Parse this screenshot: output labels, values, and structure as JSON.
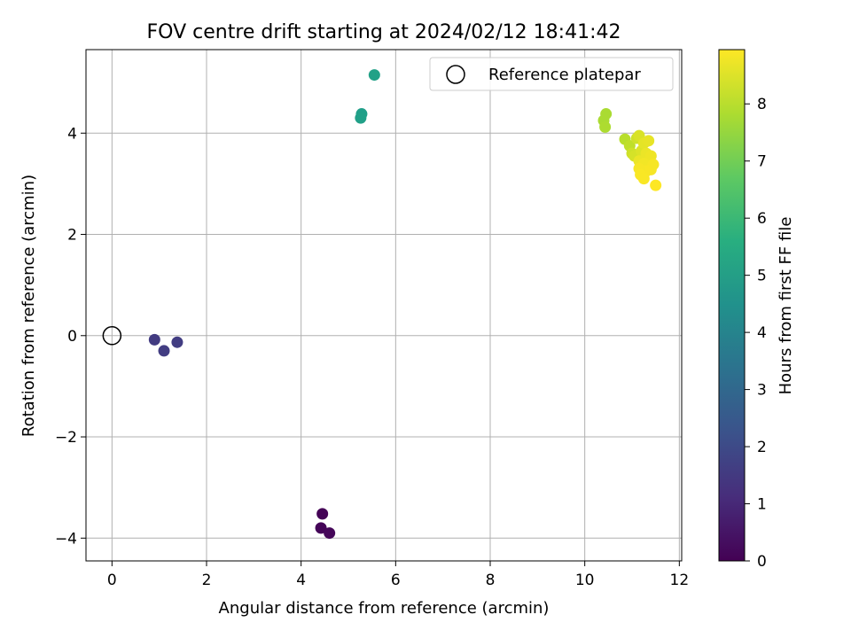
{
  "chart_data": {
    "type": "scatter",
    "title": "FOV centre drift starting at 2024/02/12 18:41:42",
    "xlabel": "Angular distance from reference (arcmin)",
    "ylabel": "Rotation from reference (arcmin)",
    "xlim": [
      -0.55,
      12.05
    ],
    "ylim": [
      -4.45,
      5.65
    ],
    "xticks": [
      0,
      2,
      4,
      6,
      8,
      10,
      12
    ],
    "yticks": [
      -4,
      -2,
      0,
      2,
      4
    ],
    "xtick_labels": [
      "0",
      "2",
      "4",
      "6",
      "8",
      "10",
      "12"
    ],
    "ytick_labels": [
      "−4",
      "−2",
      "0",
      "2",
      "4"
    ],
    "grid": true,
    "legend": {
      "position": "top-right",
      "label": "Reference platepar"
    },
    "reference_point": {
      "x": 0,
      "y": 0
    },
    "colorbar": {
      "label": "Hours from first FF file",
      "colormap": "viridis",
      "range": [
        0,
        8.95
      ],
      "ticks": [
        0,
        1,
        2,
        3,
        4,
        5,
        6,
        7,
        8
      ],
      "tick_labels": [
        "0",
        "1",
        "2",
        "3",
        "4",
        "5",
        "6",
        "7",
        "8"
      ]
    },
    "points": [
      {
        "x": 4.45,
        "y": -3.52,
        "c": 0.05
      },
      {
        "x": 4.42,
        "y": -3.8,
        "c": 0.1
      },
      {
        "x": 4.6,
        "y": -3.9,
        "c": 0.15
      },
      {
        "x": 0.9,
        "y": -0.08,
        "c": 1.55
      },
      {
        "x": 1.1,
        "y": -0.3,
        "c": 1.6
      },
      {
        "x": 1.38,
        "y": -0.13,
        "c": 1.6
      },
      {
        "x": 5.55,
        "y": 5.15,
        "c": 5.1
      },
      {
        "x": 5.28,
        "y": 4.38,
        "c": 5.0
      },
      {
        "x": 5.26,
        "y": 4.3,
        "c": 5.05
      },
      {
        "x": 10.45,
        "y": 4.38,
        "c": 7.8
      },
      {
        "x": 10.4,
        "y": 4.25,
        "c": 7.8
      },
      {
        "x": 10.43,
        "y": 4.12,
        "c": 7.85
      },
      {
        "x": 10.85,
        "y": 3.88,
        "c": 8.0
      },
      {
        "x": 10.95,
        "y": 3.75,
        "c": 8.1
      },
      {
        "x": 11.1,
        "y": 3.9,
        "c": 8.3
      },
      {
        "x": 11.15,
        "y": 3.95,
        "c": 8.45
      },
      {
        "x": 11.0,
        "y": 3.6,
        "c": 8.3
      },
      {
        "x": 11.05,
        "y": 3.55,
        "c": 8.4
      },
      {
        "x": 11.2,
        "y": 3.65,
        "c": 8.5
      },
      {
        "x": 11.25,
        "y": 3.8,
        "c": 8.6
      },
      {
        "x": 11.35,
        "y": 3.85,
        "c": 8.65
      },
      {
        "x": 11.3,
        "y": 3.6,
        "c": 8.7
      },
      {
        "x": 11.4,
        "y": 3.55,
        "c": 8.75
      },
      {
        "x": 11.15,
        "y": 3.45,
        "c": 8.7
      },
      {
        "x": 11.25,
        "y": 3.4,
        "c": 8.8
      },
      {
        "x": 11.35,
        "y": 3.35,
        "c": 8.8
      },
      {
        "x": 11.45,
        "y": 3.38,
        "c": 8.85
      },
      {
        "x": 11.4,
        "y": 3.28,
        "c": 8.85
      },
      {
        "x": 11.3,
        "y": 3.25,
        "c": 8.88
      },
      {
        "x": 11.15,
        "y": 3.3,
        "c": 8.85
      },
      {
        "x": 11.18,
        "y": 3.18,
        "c": 8.9
      },
      {
        "x": 11.25,
        "y": 3.1,
        "c": 8.9
      },
      {
        "x": 11.5,
        "y": 2.97,
        "c": 8.95
      }
    ]
  }
}
